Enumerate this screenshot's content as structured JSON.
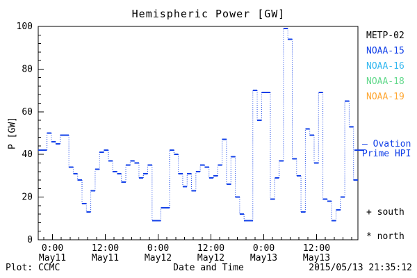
{
  "title": "Hemispheric Power [GW]",
  "axes": {
    "y_label": "P [GW]",
    "x_label": "Date and Time",
    "ylim": [
      0,
      100
    ],
    "y_major_ticks": [
      0,
      20,
      40,
      60,
      80,
      100
    ],
    "y_minor_step": 4,
    "x_major_ticks": [
      {
        "time": "0:00",
        "date": "May11"
      },
      {
        "time": "12:00",
        "date": "May11"
      },
      {
        "time": "0:00",
        "date": "May12"
      },
      {
        "time": "12:00",
        "date": "May12"
      },
      {
        "time": "0:00",
        "date": "May13"
      },
      {
        "time": "12:00",
        "date": "May13"
      }
    ],
    "x_minor_per_major": 6
  },
  "legend": {
    "satellites": [
      {
        "label": "METP-02",
        "color": "#000000"
      },
      {
        "label": "NOAA-15",
        "color": "#1240e8"
      },
      {
        "label": "NOAA-16",
        "color": "#35b8f0"
      },
      {
        "label": "NOAA-18",
        "color": "#63d98c"
      },
      {
        "label": "NOAA-19",
        "color": "#ffa733"
      }
    ]
  },
  "annotations": {
    "ovation_line1": "— Ovation",
    "ovation_line2": "Prime HPI",
    "ovation_value_gw": 42,
    "ovation_color": "#1240e8",
    "south_label": "+ south",
    "north_label": "* north"
  },
  "footer": {
    "left": "Plot: CCMC",
    "right": "2015/05/13 21:35:12"
  },
  "chart_data": {
    "type": "line",
    "step_mode": "post",
    "title": "Hemispheric Power [GW]",
    "xlabel": "Date and Time",
    "ylabel": "P [GW]",
    "ylim": [
      0,
      100
    ],
    "x_step_hours": 1,
    "x_first_major_tick_offset_hours": 3.25,
    "grid": false,
    "legend_position": "right-outside",
    "series": [
      {
        "name": "Hemispheric Power Index (blue step line)",
        "color": "#1240e8",
        "values": [
          42,
          42,
          50,
          46,
          45,
          49,
          49,
          34,
          31,
          28,
          17,
          13,
          23,
          33,
          41,
          42,
          37,
          32,
          31,
          27,
          35,
          37,
          36,
          29,
          31,
          35,
          9,
          9,
          15,
          15,
          42,
          40,
          31,
          25,
          31,
          23,
          32,
          35,
          34,
          29,
          30,
          35,
          47,
          26,
          39,
          20,
          12,
          9,
          9,
          70,
          56,
          69,
          69,
          19,
          29,
          37,
          99,
          94,
          38,
          30,
          13,
          52,
          49,
          36,
          69,
          19,
          18,
          9,
          14,
          20,
          65,
          53,
          28
        ]
      }
    ]
  }
}
